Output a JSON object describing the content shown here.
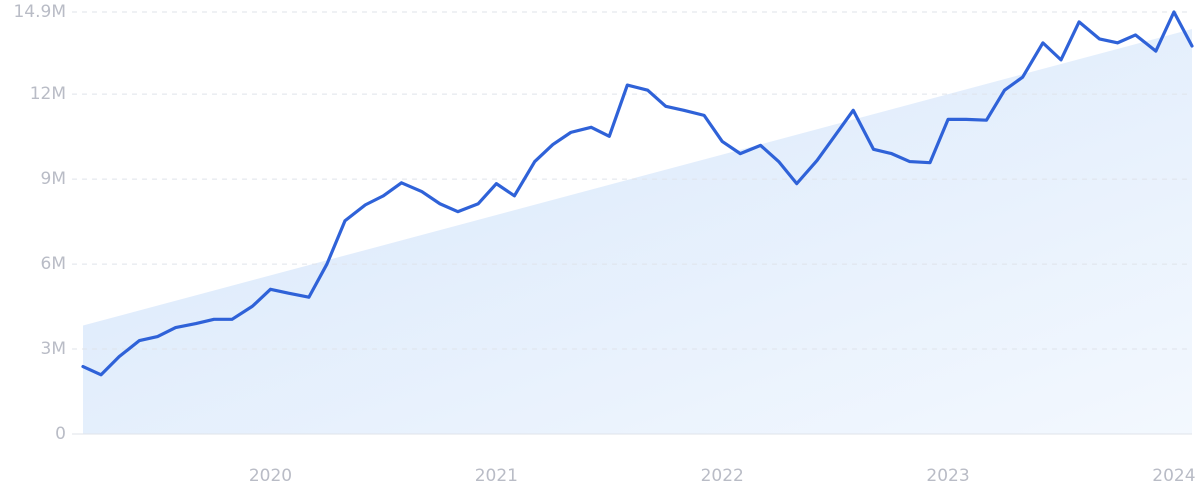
{
  "chart_data": {
    "type": "line",
    "x": [
      2019.17,
      2019.25,
      2019.33,
      2019.42,
      2019.5,
      2019.58,
      2019.67,
      2019.75,
      2019.83,
      2019.92,
      2020,
      2020.08,
      2020.17,
      2020.25,
      2020.33,
      2020.42,
      2020.5,
      2020.58,
      2020.67,
      2020.75,
      2020.83,
      2020.92,
      2021,
      2021.08,
      2021.17,
      2021.25,
      2021.33,
      2021.42,
      2021.5,
      2021.58,
      2021.67,
      2021.75,
      2021.83,
      2021.92,
      2022,
      2022.08,
      2022.17,
      2022.25,
      2022.33,
      2022.42,
      2022.5,
      2022.58,
      2022.67,
      2022.75,
      2022.83,
      2022.92,
      2023,
      2023.08,
      2023.17,
      2023.25,
      2023.33,
      2023.42,
      2023.5,
      2023.58,
      2023.67,
      2023.75,
      2023.83,
      2023.92,
      2024,
      2024.08
    ],
    "series": [
      {
        "color": "#2f62d8",
        "values": [
          2.38,
          2.09,
          2.73,
          3.3,
          3.44,
          3.76,
          3.9,
          4.05,
          4.05,
          4.51,
          5.11,
          4.97,
          4.83,
          6.0,
          7.53,
          8.09,
          8.41,
          8.87,
          8.56,
          8.13,
          7.85,
          8.13,
          8.84,
          8.41,
          9.62,
          10.22,
          10.65,
          10.83,
          10.51,
          12.32,
          12.14,
          11.57,
          11.43,
          11.25,
          10.33,
          9.9,
          10.19,
          9.62,
          8.84,
          9.66,
          10.54,
          11.43,
          10.05,
          9.9,
          9.62,
          9.58,
          11.11,
          11.11,
          11.08,
          12.14,
          12.6,
          13.81,
          13.21,
          14.55,
          13.95,
          13.81,
          14.09,
          13.52,
          14.9,
          13.7
        ]
      }
    ],
    "trend": {
      "color": "#dbe9fb",
      "x": [
        2019.17,
        2024.08
      ],
      "values": [
        3.83,
        14.3
      ]
    },
    "xlim": [
      2019.17,
      2024.08
    ],
    "xticks": [
      2020,
      2021,
      2022,
      2023,
      2024
    ],
    "ylim": [
      0,
      14.9
    ],
    "yticks": [
      0,
      {
        "value": 3,
        "label": "3M"
      },
      {
        "value": 6,
        "label": "6M"
      },
      {
        "value": 9,
        "label": "9M"
      },
      {
        "value": 12,
        "label": "12M"
      },
      {
        "value": 14.9,
        "label": "14.9M"
      }
    ],
    "grid": true
  }
}
